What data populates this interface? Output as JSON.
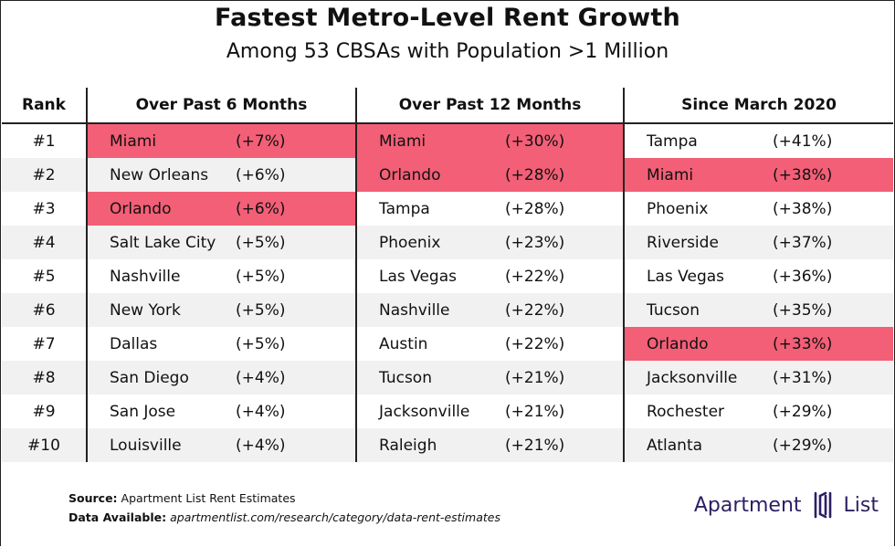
{
  "title": "Fastest Metro-Level Rent Growth",
  "subtitle": "Among 53 CBSAs with Population >1 Million",
  "headers": {
    "rank": "Rank",
    "col1": "Over Past 6 Months",
    "col2": "Over Past 12 Months",
    "col3": "Since March 2020"
  },
  "highlight_color": "#f25f76",
  "rows": [
    {
      "rank": "#1",
      "c1_city": "Miami",
      "c1_pct": "(+7%)",
      "c2_city": "Miami",
      "c2_pct": "(+30%)",
      "c3_city": "Tampa",
      "c3_pct": "(+41%)"
    },
    {
      "rank": "#2",
      "c1_city": "New Orleans",
      "c1_pct": "(+6%)",
      "c2_city": "Orlando",
      "c2_pct": "(+28%)",
      "c3_city": "Miami",
      "c3_pct": "(+38%)"
    },
    {
      "rank": "#3",
      "c1_city": "Orlando",
      "c1_pct": "(+6%)",
      "c2_city": "Tampa",
      "c2_pct": "(+28%)",
      "c3_city": "Phoenix",
      "c3_pct": "(+38%)"
    },
    {
      "rank": "#4",
      "c1_city": "Salt Lake City",
      "c1_pct": "(+5%)",
      "c2_city": "Phoenix",
      "c2_pct": "(+23%)",
      "c3_city": "Riverside",
      "c3_pct": "(+37%)"
    },
    {
      "rank": "#5",
      "c1_city": "Nashville",
      "c1_pct": "(+5%)",
      "c2_city": "Las Vegas",
      "c2_pct": "(+22%)",
      "c3_city": "Las Vegas",
      "c3_pct": "(+36%)"
    },
    {
      "rank": "#6",
      "c1_city": "New York",
      "c1_pct": "(+5%)",
      "c2_city": "Nashville",
      "c2_pct": "(+22%)",
      "c3_city": "Tucson",
      "c3_pct": "(+35%)"
    },
    {
      "rank": "#7",
      "c1_city": "Dallas",
      "c1_pct": "(+5%)",
      "c2_city": "Austin",
      "c2_pct": "(+22%)",
      "c3_city": "Orlando",
      "c3_pct": "(+33%)"
    },
    {
      "rank": "#8",
      "c1_city": "San Diego",
      "c1_pct": "(+4%)",
      "c2_city": "Tucson",
      "c2_pct": "(+21%)",
      "c3_city": "Jacksonville",
      "c3_pct": "(+31%)"
    },
    {
      "rank": "#9",
      "c1_city": "San Jose",
      "c1_pct": "(+4%)",
      "c2_city": "Jacksonville",
      "c2_pct": "(+21%)",
      "c3_city": "Rochester",
      "c3_pct": "(+29%)"
    },
    {
      "rank": "#10",
      "c1_city": "Louisville",
      "c1_pct": "(+4%)",
      "c2_city": "Raleigh",
      "c2_pct": "(+21%)",
      "c3_city": "Atlanta",
      "c3_pct": "(+29%)"
    }
  ],
  "footer": {
    "source_label": "Source:",
    "source_text": "Apartment List Rent Estimates",
    "available_label": "Data Available:",
    "available_text": "apartmentlist.com/research/category/data-rent-estimates"
  },
  "logo": {
    "word1": "Apartment",
    "word2": "List",
    "icon": "apartment-list-logo-icon",
    "color": "#2d1f63"
  }
}
